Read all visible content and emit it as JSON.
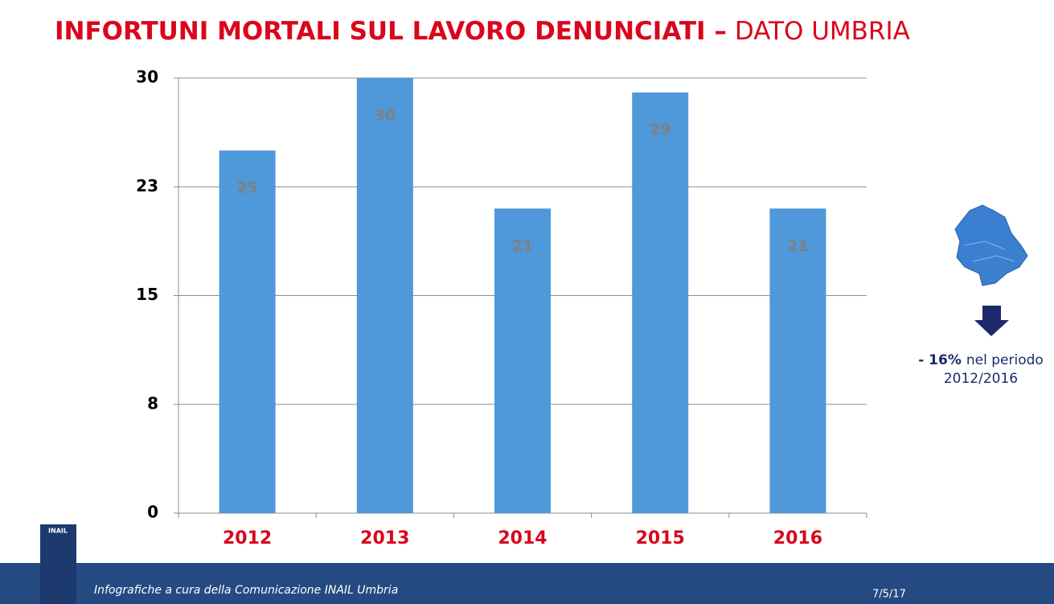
{
  "chart_data": {
    "type": "bar",
    "title": "INFORTUNI MORTALI SUL LAVORO DENUNCIATI –",
    "subtitle": "DATO UMBRIA",
    "categories": [
      "2012",
      "2013",
      "2014",
      "2015",
      "2016"
    ],
    "values": [
      25,
      30,
      21,
      29,
      21
    ],
    "color": "#4f98d9",
    "ylim": [
      0,
      30
    ],
    "yticks": [
      0,
      {
        "value": 7.5,
        "label": "8"
      },
      15,
      {
        "value": 22.5,
        "label": "23"
      },
      30
    ],
    "grid": true
  },
  "side_note": {
    "highlight": "- 16%",
    "text": "nel periodo",
    "period": "2012/2016"
  },
  "logo": "INAIL",
  "footer": {
    "credit": "Infografiche a cura della Comunicazione INAIL Umbria",
    "date": "7/5/17"
  }
}
